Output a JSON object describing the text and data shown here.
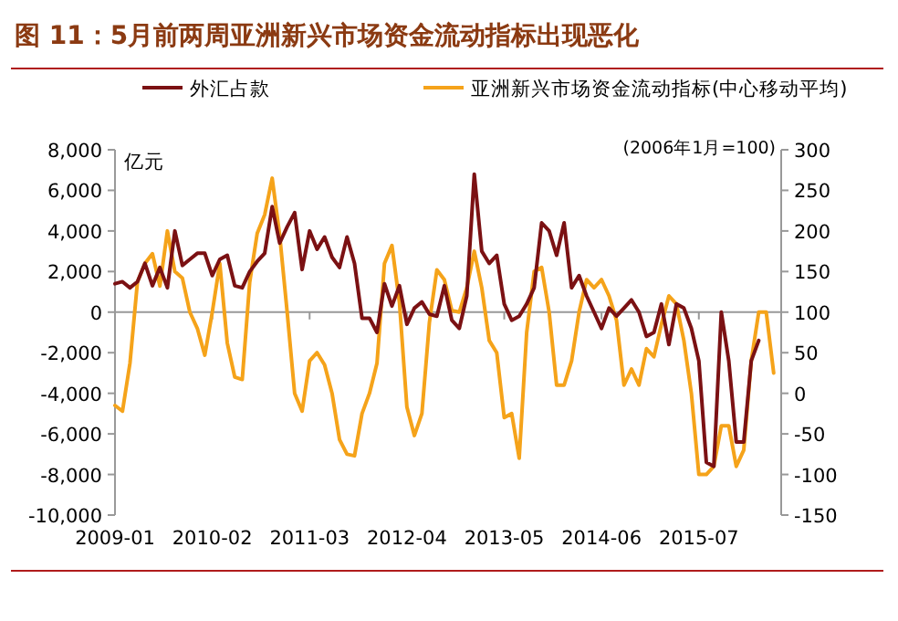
{
  "chart_data": {
    "type": "line",
    "title": "图 11：5月前两周亚洲新兴市场资金流动指标出现恶化",
    "ylabel": "亿元",
    "y2label": "(2006年1月=100)",
    "legend": "top",
    "x": [
      "2009-01",
      "2009-02",
      "2009-03",
      "2009-04",
      "2009-05",
      "2009-06",
      "2009-07",
      "2009-08",
      "2009-09",
      "2009-10",
      "2009-11",
      "2009-12",
      "2010-01",
      "2010-02",
      "2010-03",
      "2010-04",
      "2010-05",
      "2010-06",
      "2010-07",
      "2010-08",
      "2010-09",
      "2010-10",
      "2010-11",
      "2010-12",
      "2011-01",
      "2011-02",
      "2011-03",
      "2011-04",
      "2011-05",
      "2011-06",
      "2011-07",
      "2011-08",
      "2011-09",
      "2011-10",
      "2011-11",
      "2011-12",
      "2012-01",
      "2012-02",
      "2012-03",
      "2012-04",
      "2012-05",
      "2012-06",
      "2012-07",
      "2012-08",
      "2012-09",
      "2012-10",
      "2012-11",
      "2012-12",
      "2013-01",
      "2013-02",
      "2013-03",
      "2013-04",
      "2013-05",
      "2013-06",
      "2013-07",
      "2013-08",
      "2013-09",
      "2013-10",
      "2013-11",
      "2013-12",
      "2014-01",
      "2014-02",
      "2014-03",
      "2014-04",
      "2014-05",
      "2014-06",
      "2014-07",
      "2014-08",
      "2014-09",
      "2014-10",
      "2014-11",
      "2014-12",
      "2015-01",
      "2015-02",
      "2015-03",
      "2015-04",
      "2015-05",
      "2015-06",
      "2015-07",
      "2015-08",
      "2015-09",
      "2015-10",
      "2015-11",
      "2015-12",
      "2016-01",
      "2016-02",
      "2016-03",
      "2016-04",
      "2016-05"
    ],
    "xlim": [
      "2009-01",
      "2016-06"
    ],
    "xticks": [
      "2009-01",
      "2010-02",
      "2011-03",
      "2012-04",
      "2013-05",
      "2014-06",
      "2015-07"
    ],
    "ylim": [
      -10000,
      8000
    ],
    "yticks": [
      {
        "value": -10000,
        "label": "-10,000"
      },
      {
        "value": -8000,
        "label": "-8,000"
      },
      {
        "value": -6000,
        "label": "-6,000"
      },
      {
        "value": -4000,
        "label": "-4,000"
      },
      {
        "value": -2000,
        "label": "-2,000"
      },
      0,
      {
        "value": 2000,
        "label": "2,000"
      },
      {
        "value": 4000,
        "label": "4,000"
      },
      {
        "value": 6000,
        "label": "6,000"
      },
      {
        "value": 8000,
        "label": "8,000"
      }
    ],
    "y2lim": [
      -150,
      300
    ],
    "y2ticks": [
      -150,
      -100,
      -50,
      0,
      50,
      100,
      150,
      200,
      250,
      300
    ],
    "series": [
      {
        "name": "外汇占款",
        "color": "#7b1113",
        "values": [
          1400,
          1500,
          1200,
          1500,
          2400,
          1300,
          2200,
          1200,
          4000,
          2300,
          2600,
          2900,
          2900,
          1800,
          2600,
          2800,
          1300,
          1200,
          2000,
          2500,
          2900,
          5200,
          3400,
          4200,
          4900,
          2100,
          4000,
          3100,
          3700,
          2700,
          2200,
          3700,
          2400,
          -300,
          -300,
          -1000,
          1400,
          300,
          1300,
          -600,
          200,
          500,
          -100,
          -200,
          1300,
          -400,
          -800,
          800,
          6800,
          3000,
          2400,
          2800,
          400,
          -400,
          -200,
          400,
          1200,
          4400,
          4000,
          2800,
          4400,
          1200,
          1800,
          800,
          0,
          -800,
          200,
          -200,
          200,
          600,
          0,
          -1200,
          -1000,
          400,
          -1600,
          400,
          200,
          -800,
          -2400,
          -7400,
          -7600,
          0,
          -2400,
          -6400,
          -6400,
          -2400,
          -1400,
          null,
          null
        ]
      },
      {
        "name": "亚洲新兴市场资金流动指标(中心移动平均)",
        "color": "#f5a31a",
        "axis": "y2",
        "values": [
          -15,
          -22,
          37,
          137,
          160,
          172,
          132,
          200,
          150,
          142,
          100,
          80,
          47,
          100,
          160,
          62,
          20,
          17,
          137,
          197,
          220,
          265,
          195,
          100,
          0,
          -22,
          40,
          50,
          35,
          0,
          -57,
          -75,
          -77,
          -25,
          0,
          37,
          160,
          182,
          112,
          -17,
          -52,
          -25,
          87,
          152,
          140,
          102,
          100,
          130,
          175,
          130,
          65,
          50,
          -30,
          -25,
          -80,
          75,
          150,
          155,
          100,
          10,
          10,
          40,
          100,
          140,
          130,
          140,
          120,
          90,
          10,
          30,
          10,
          55,
          45,
          85,
          120,
          110,
          65,
          0,
          -100,
          -100,
          -90,
          -40,
          -40,
          -90,
          -70,
          40,
          100,
          100,
          25
        ]
      }
    ]
  }
}
